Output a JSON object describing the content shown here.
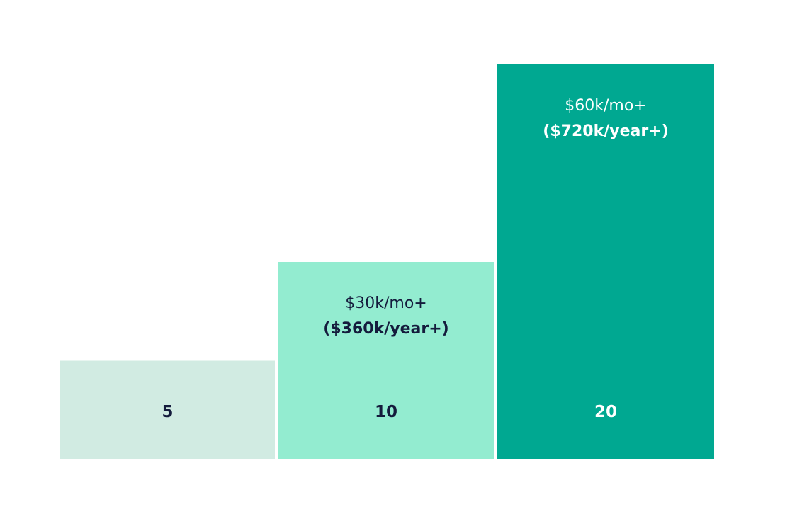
{
  "chart_data": {
    "type": "bar",
    "title": "",
    "xlabel": "",
    "ylabel": "",
    "ylim": [
      0,
      20
    ],
    "grid": false,
    "legend": "none",
    "bars": [
      {
        "label": "5",
        "value": 5,
        "color": "#d1ebe2",
        "label_color": "#141b3c",
        "note_color": "#141b3c"
      },
      {
        "label": "10",
        "value": 10,
        "color": "#93ecd0",
        "label_color": "#141b3c",
        "note_color": "#141b3c",
        "note_line1": "$30k/mo+",
        "note_line2": "($360k/year+)"
      },
      {
        "label": "20",
        "value": 20,
        "color": "#00a891",
        "label_color": "#ffffff",
        "note_color": "#ffffff",
        "note_line1": "$60k/mo+",
        "note_line2": "($720k/year+)"
      }
    ]
  }
}
